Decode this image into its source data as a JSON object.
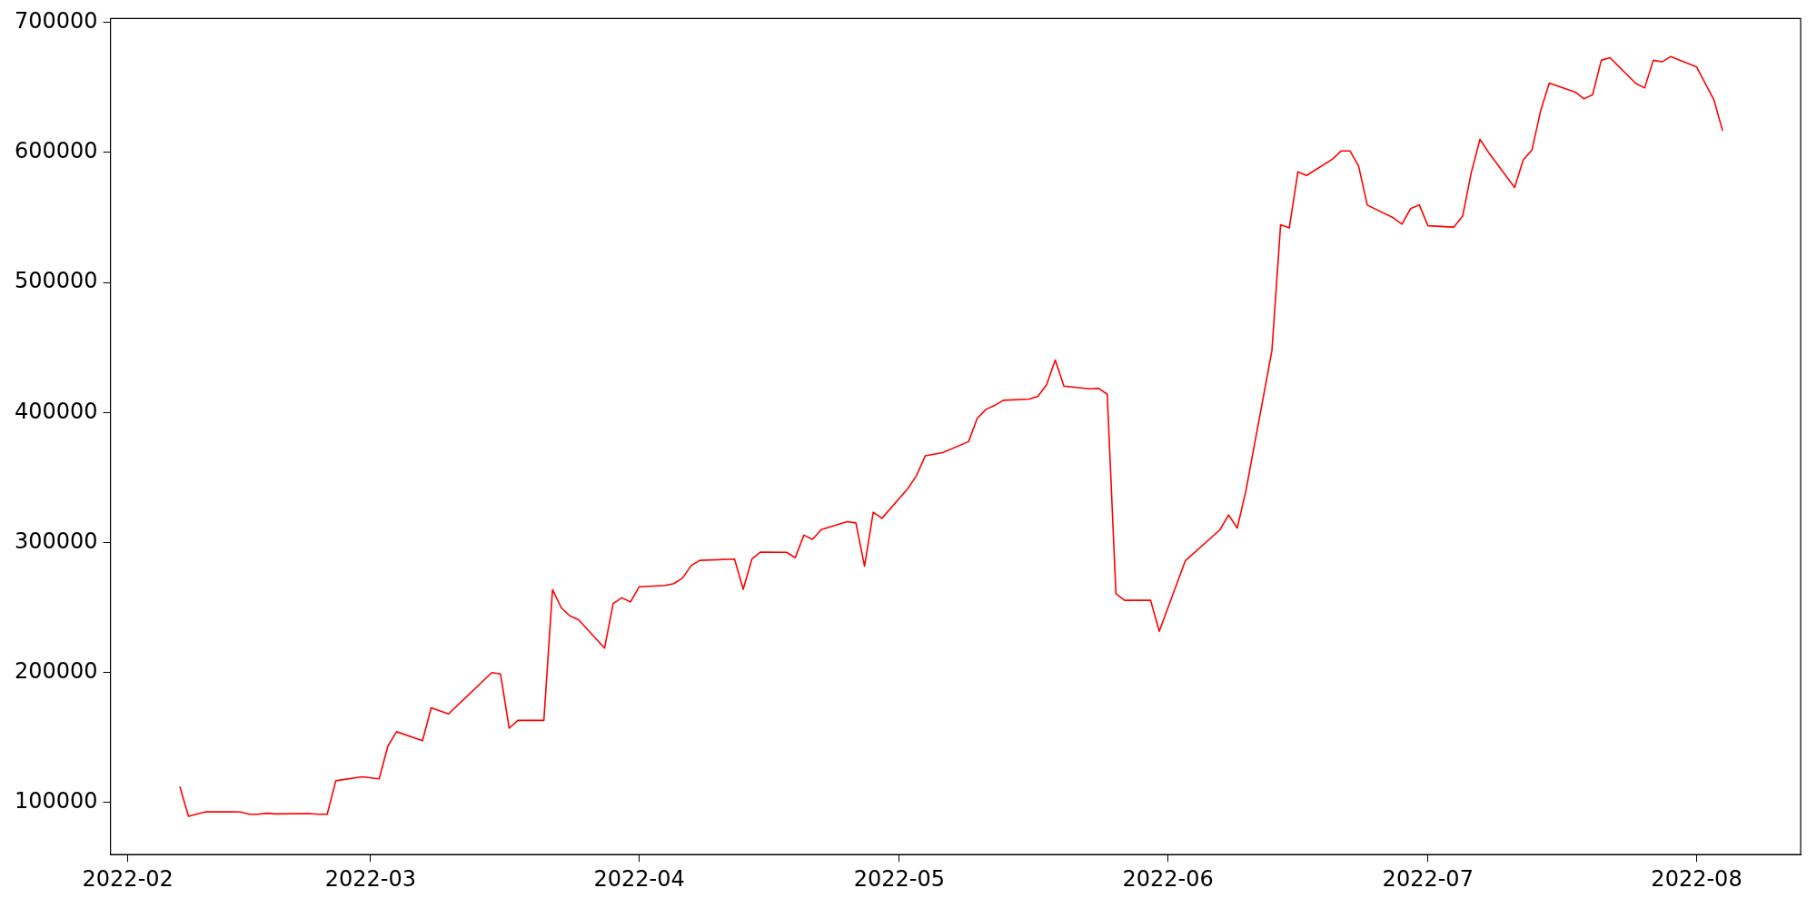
{
  "chart_data": {
    "type": "line",
    "x": [
      "2022-02-07",
      "2022-02-08",
      "2022-02-10",
      "2022-02-14",
      "2022-02-15",
      "2022-02-16",
      "2022-02-17",
      "2022-02-18",
      "2022-02-22",
      "2022-02-23",
      "2022-02-24",
      "2022-02-25",
      "2022-02-28",
      "2022-03-02",
      "2022-03-03",
      "2022-03-04",
      "2022-03-07",
      "2022-03-08",
      "2022-03-10",
      "2022-03-15",
      "2022-03-16",
      "2022-03-17",
      "2022-03-18",
      "2022-03-21",
      "2022-03-22",
      "2022-03-23",
      "2022-03-24",
      "2022-03-25",
      "2022-03-28",
      "2022-03-29",
      "2022-03-30",
      "2022-03-31",
      "2022-04-01",
      "2022-04-04",
      "2022-04-05",
      "2022-04-06",
      "2022-04-07",
      "2022-04-08",
      "2022-04-12",
      "2022-04-13",
      "2022-04-14",
      "2022-04-15",
      "2022-04-18",
      "2022-04-19",
      "2022-04-20",
      "2022-04-21",
      "2022-04-22",
      "2022-04-25",
      "2022-04-26",
      "2022-04-27",
      "2022-04-28",
      "2022-04-29",
      "2022-05-02",
      "2022-05-03",
      "2022-05-04",
      "2022-05-06",
      "2022-05-09",
      "2022-05-10",
      "2022-05-11",
      "2022-05-12",
      "2022-05-13",
      "2022-05-16",
      "2022-05-17",
      "2022-05-18",
      "2022-05-19",
      "2022-05-20",
      "2022-05-23",
      "2022-05-24",
      "2022-05-25",
      "2022-05-26",
      "2022-05-27",
      "2022-05-30",
      "2022-05-31",
      "2022-06-03",
      "2022-06-07",
      "2022-06-08",
      "2022-06-09",
      "2022-06-10",
      "2022-06-13",
      "2022-06-14",
      "2022-06-15",
      "2022-06-16",
      "2022-06-17",
      "2022-06-20",
      "2022-06-21",
      "2022-06-22",
      "2022-06-23",
      "2022-06-24",
      "2022-06-27",
      "2022-06-28",
      "2022-06-29",
      "2022-06-30",
      "2022-07-01",
      "2022-07-04",
      "2022-07-05",
      "2022-07-06",
      "2022-07-07",
      "2022-07-08",
      "2022-07-11",
      "2022-07-12",
      "2022-07-13",
      "2022-07-14",
      "2022-07-15",
      "2022-07-18",
      "2022-07-19",
      "2022-07-20",
      "2022-07-21",
      "2022-07-22",
      "2022-07-25",
      "2022-07-26",
      "2022-07-27",
      "2022-07-28",
      "2022-07-29",
      "2022-08-01",
      "2022-08-03",
      "2022-08-04"
    ],
    "series": [
      {
        "color": "#ff0000",
        "values": [
          112400,
          89500,
          93000,
          92800,
          91000,
          91000,
          91800,
          91300,
          91600,
          91000,
          91000,
          116800,
          119800,
          118300,
          143400,
          154500,
          147600,
          172900,
          168200,
          200000,
          198900,
          157200,
          163200,
          163200,
          263800,
          249900,
          243600,
          240600,
          218800,
          253100,
          257500,
          254300,
          266000,
          267000,
          268400,
          272700,
          282300,
          286300,
          287300,
          264000,
          287300,
          292700,
          292500,
          288300,
          305700,
          302500,
          309900,
          316100,
          315100,
          281800,
          323300,
          318600,
          341600,
          351600,
          366700,
          369200,
          377600,
          395500,
          402400,
          405400,
          409400,
          410300,
          412400,
          421400,
          440400,
          420300,
          418200,
          418600,
          414000,
          260700,
          255600,
          255600,
          231700,
          285900,
          309800,
          321200,
          311200,
          339900,
          447600,
          544400,
          541900,
          585100,
          582300,
          595000,
          601200,
          601200,
          589500,
          559500,
          549800,
          544900,
          556800,
          559700,
          543600,
          542600,
          551000,
          584500,
          610100,
          600000,
          573100,
          594300,
          601900,
          632000,
          653300,
          646400,
          641200,
          644400,
          670900,
          672900,
          653000,
          649600,
          670900,
          669700,
          673700,
          665700,
          640300,
          616600
        ]
      }
    ],
    "xlim": [
      "2022-01-30",
      "2022-08-13"
    ],
    "xticks": [
      "2022-02",
      "2022-03",
      "2022-04",
      "2022-05",
      "2022-06",
      "2022-07",
      "2022-08"
    ],
    "ylim": [
      60000,
      703000
    ],
    "yticks": [
      100000,
      200000,
      300000,
      400000,
      500000,
      600000,
      700000
    ],
    "grid": false,
    "legend": false,
    "marker": "none",
    "line_style": "solid"
  }
}
